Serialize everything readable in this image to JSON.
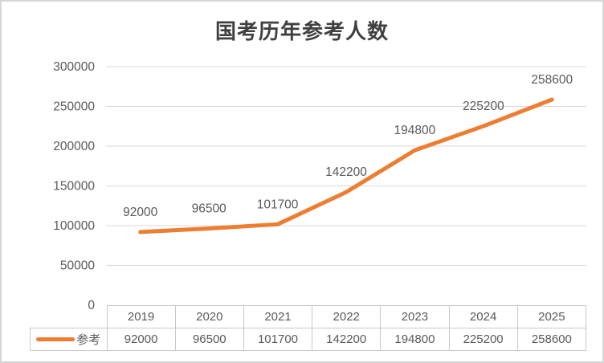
{
  "frame": {
    "background": "#ffffff",
    "border_color": "#d6d6d6"
  },
  "chart_data": {
    "type": "line",
    "title": "国考历年参考人数",
    "categories": [
      "2019",
      "2020",
      "2021",
      "2022",
      "2023",
      "2024",
      "2025"
    ],
    "series": [
      {
        "name": "参考",
        "values": [
          92000,
          96500,
          101700,
          142200,
          194800,
          225200,
          258600
        ],
        "color": "#ED7D31"
      }
    ],
    "xlabel": "",
    "ylabel": "",
    "ylim": [
      0,
      300000
    ],
    "yticks": [
      0,
      50000,
      100000,
      150000,
      200000,
      250000,
      300000
    ],
    "grid": true,
    "data_labels": true,
    "legend_position": "data-table-left"
  },
  "colors": {
    "accent": "#ED7D31",
    "gridline": "#d9d9d9",
    "table_border": "#c8c8c8",
    "axis_text": "#595959",
    "label_text": "#595959",
    "title_text": "#404040"
  }
}
